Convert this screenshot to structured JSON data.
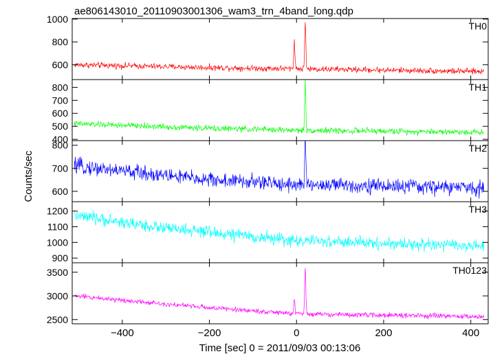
{
  "chart_data": {
    "type": "line",
    "title": "ae806143010_20110903001306_wam3_trn_4band_long.qdp",
    "xlabel": "Time [sec] 0 = 2011/09/03 00:13:06",
    "ylabel": "Counts/sec",
    "xlim": [
      -515,
      440
    ],
    "xticks": [
      -400,
      -200,
      0,
      200,
      400
    ],
    "xticklabels": [
      "−400",
      "−200",
      "0",
      "200",
      "400"
    ],
    "grid": false,
    "legend": "none",
    "panels": [
      {
        "name": "TH0",
        "color": "#ff0000",
        "ylim": [
          470,
          1005
        ],
        "yticks": [
          600,
          800,
          1000
        ],
        "yticklabels": [
          "600",
          "800",
          "1000"
        ],
        "trend": [
          {
            "t": -510,
            "v": 600
          },
          {
            "t": -200,
            "v": 575
          },
          {
            "t": 0,
            "v": 565
          },
          {
            "t": 430,
            "v": 540
          }
        ],
        "noise": 20,
        "spikes": [
          {
            "t": -5,
            "v": 830
          },
          {
            "t": 20,
            "v": 1000
          }
        ]
      },
      {
        "name": "TH1",
        "color": "#00ff00",
        "ylim": [
          390,
          860
        ],
        "yticks": [
          400,
          500,
          600,
          700,
          800
        ],
        "yticklabels": [
          "400",
          "500",
          "600",
          "700",
          "800"
        ],
        "trend": [
          {
            "t": -510,
            "v": 520
          },
          {
            "t": -200,
            "v": 485
          },
          {
            "t": 0,
            "v": 470
          },
          {
            "t": 430,
            "v": 455
          }
        ],
        "noise": 18,
        "spikes": [
          {
            "t": 20,
            "v": 850
          }
        ]
      },
      {
        "name": "TH2",
        "color": "#0000ff",
        "ylim": [
          555,
          820
        ],
        "yticks": [
          600,
          700,
          800
        ],
        "yticklabels": [
          "600",
          "700",
          "800"
        ],
        "trend": [
          {
            "t": -510,
            "v": 710
          },
          {
            "t": -200,
            "v": 650
          },
          {
            "t": 0,
            "v": 630
          },
          {
            "t": 430,
            "v": 615
          }
        ],
        "noise": 25,
        "spikes": [
          {
            "t": 20,
            "v": 820
          }
        ]
      },
      {
        "name": "TH3",
        "color": "#00ffff",
        "ylim": [
          870,
          1260
        ],
        "yticks": [
          900,
          1000,
          1100,
          1200
        ],
        "yticklabels": [
          "900",
          "1000",
          "1100",
          "1200"
        ],
        "trend": [
          {
            "t": -510,
            "v": 1170
          },
          {
            "t": -300,
            "v": 1090
          },
          {
            "t": 0,
            "v": 1010
          },
          {
            "t": 430,
            "v": 975
          }
        ],
        "noise": 30,
        "spikes": []
      },
      {
        "name": "TH0123",
        "color": "#ff00ff",
        "ylim": [
          2410,
          3700
        ],
        "yticks": [
          2500,
          3000,
          3500
        ],
        "yticklabels": [
          "2500",
          "3000",
          "3500"
        ],
        "trend": [
          {
            "t": -510,
            "v": 3000
          },
          {
            "t": -200,
            "v": 2750
          },
          {
            "t": 0,
            "v": 2620
          },
          {
            "t": 430,
            "v": 2560
          }
        ],
        "noise": 40,
        "spikes": [
          {
            "t": -5,
            "v": 2950
          },
          {
            "t": 20,
            "v": 3650
          }
        ]
      }
    ]
  }
}
